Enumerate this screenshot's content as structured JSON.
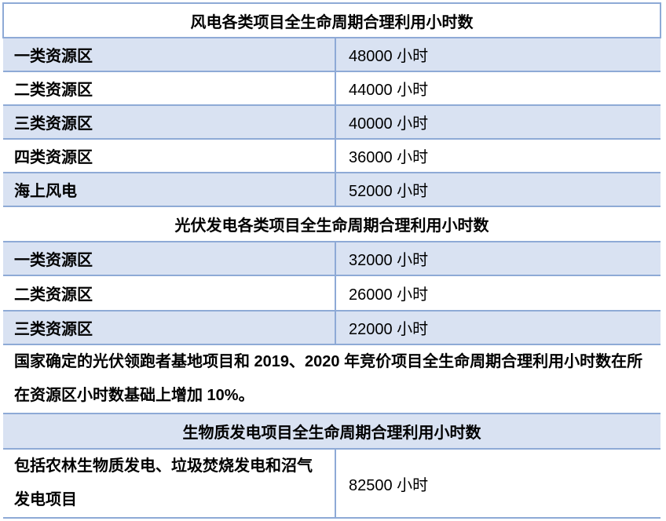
{
  "wind": {
    "title": "风电各类项目全生命周期合理利用小时数",
    "rows": [
      {
        "label": "一类资源区",
        "value": "48000 小时"
      },
      {
        "label": "二类资源区",
        "value": "44000 小时"
      },
      {
        "label": "三类资源区",
        "value": "40000 小时"
      },
      {
        "label": "四类资源区",
        "value": "36000 小时"
      },
      {
        "label": "海上风电",
        "value": "52000 小时"
      }
    ]
  },
  "solar": {
    "title": "光伏发电各类项目全生命周期合理利用小时数",
    "rows": [
      {
        "label": "一类资源区",
        "value": "32000 小时"
      },
      {
        "label": "二类资源区",
        "value": "26000 小时"
      },
      {
        "label": "三类资源区",
        "value": "22000 小时"
      }
    ],
    "note": "国家确定的光伏领跑者基地项目和 2019、2020 年竞价项目全生命周期合理利用小时数在所在资源区小时数基础上增加 10%。"
  },
  "biomass": {
    "title": "生物质发电项目全生命周期合理利用小时数",
    "rows": [
      {
        "label": "包括农林生物质发电、垃圾焚烧发电和沼气发电项目",
        "value": "82500 小时"
      }
    ]
  }
}
